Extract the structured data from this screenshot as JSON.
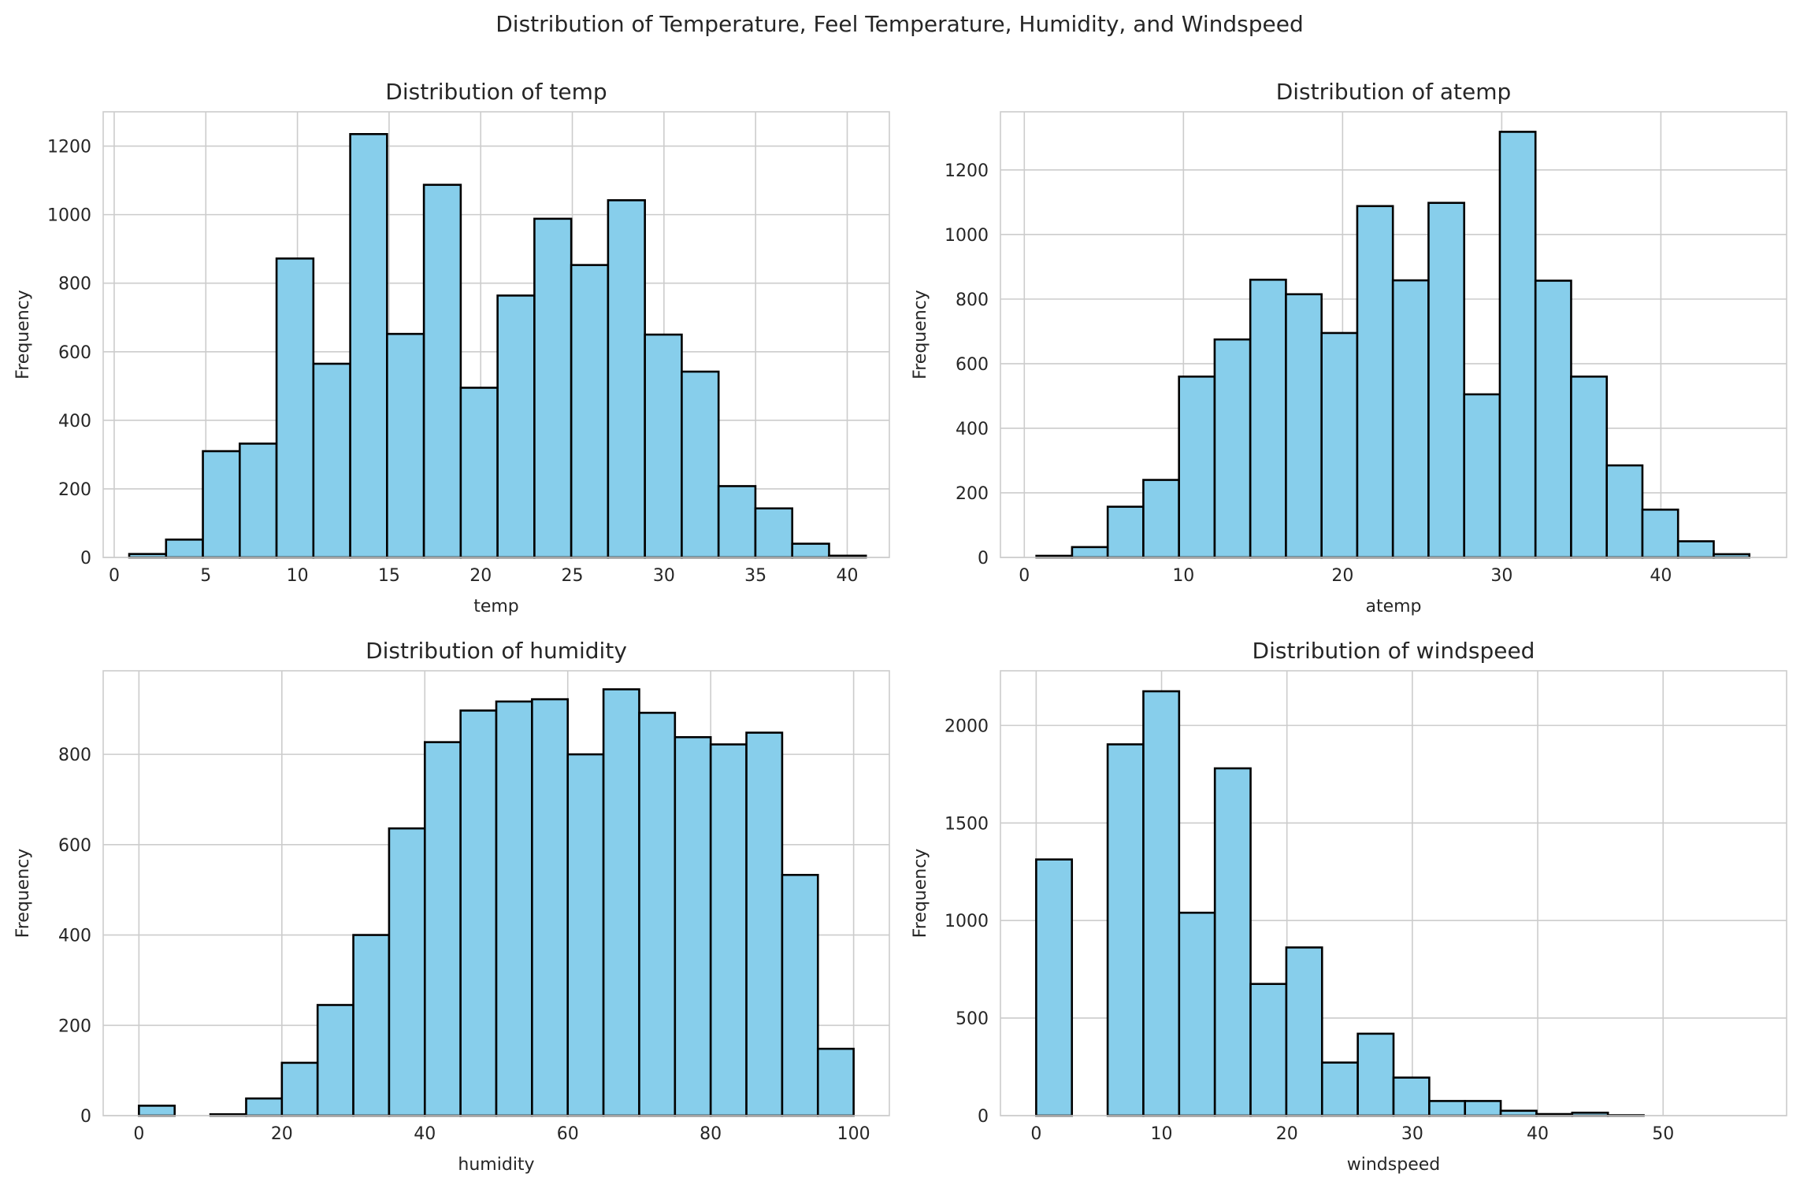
{
  "suptitle": "Distribution of Temperature, Feel Temperature, Humidity, and Windspeed",
  "colors": {
    "bar_fill": "#87ceeb",
    "bar_edge": "#000000",
    "grid": "#cccccc",
    "background": "#ffffff"
  },
  "chart_data": [
    {
      "type": "bar",
      "title": "Distribution of temp",
      "xlabel": "temp",
      "ylabel": "Frequency",
      "grid": true,
      "xlim": [
        -0.6,
        42.3
      ],
      "ylim": [
        0,
        1300
      ],
      "xticks": [
        0,
        5,
        10,
        15,
        20,
        25,
        30,
        35,
        40
      ],
      "yticks": [
        0,
        200,
        400,
        600,
        800,
        1000,
        1200
      ],
      "bin_edges": [
        0.82,
        2.83,
        4.84,
        6.85,
        8.86,
        10.87,
        12.88,
        14.89,
        16.9,
        18.91,
        20.92,
        22.93,
        24.94,
        26.95,
        28.96,
        30.97,
        32.98,
        34.99,
        37.0,
        39.01,
        41.02
      ],
      "values": [
        10,
        52,
        310,
        332,
        872,
        565,
        1235,
        652,
        1087,
        495,
        764,
        988,
        853,
        1042,
        650,
        542,
        208,
        143,
        40,
        5
      ]
    },
    {
      "type": "bar",
      "title": "Distribution of atemp",
      "xlabel": "atemp",
      "ylabel": "Frequency",
      "grid": true,
      "xlim": [
        -1.5,
        47.9
      ],
      "ylim": [
        0,
        1380
      ],
      "xticks": [
        0,
        10,
        20,
        30,
        40
      ],
      "yticks": [
        0,
        200,
        400,
        600,
        800,
        1000,
        1200
      ],
      "bin_edges": [
        0.76,
        3.0,
        5.24,
        7.48,
        9.72,
        11.96,
        14.2,
        16.44,
        18.68,
        20.92,
        23.16,
        25.4,
        27.64,
        29.88,
        32.12,
        34.36,
        36.6,
        38.84,
        41.08,
        43.32,
        45.56
      ],
      "values": [
        5,
        32,
        157,
        240,
        560,
        675,
        860,
        815,
        695,
        1088,
        858,
        1098,
        505,
        1318,
        857,
        560,
        285,
        148,
        50,
        10
      ]
    },
    {
      "type": "bar",
      "title": "Distribution of humidity",
      "xlabel": "humidity",
      "ylabel": "Frequency",
      "grid": true,
      "xlim": [
        -5,
        105
      ],
      "ylim": [
        0,
        985
      ],
      "xticks": [
        0,
        20,
        40,
        60,
        80,
        100
      ],
      "yticks": [
        0,
        200,
        400,
        600,
        800
      ],
      "bin_edges": [
        0,
        5,
        10,
        15,
        20,
        25,
        30,
        35,
        40,
        45,
        50,
        55,
        60,
        65,
        70,
        75,
        80,
        85,
        90,
        95,
        100
      ],
      "values": [
        22,
        0,
        3,
        38,
        117,
        245,
        400,
        636,
        827,
        897,
        917,
        922,
        800,
        944,
        892,
        838,
        822,
        848,
        533,
        148
      ]
    },
    {
      "type": "bar",
      "title": "Distribution of windspeed",
      "xlabel": "windspeed",
      "ylabel": "Frequency",
      "grid": true,
      "xlim": [
        -2.85,
        59.85
      ],
      "ylim": [
        0,
        2280
      ],
      "xticks": [
        0,
        10,
        20,
        30,
        40,
        50
      ],
      "yticks": [
        0,
        500,
        1000,
        1500,
        2000
      ],
      "bin_edges": [
        0,
        2.85,
        5.7,
        8.55,
        11.4,
        14.25,
        17.1,
        19.95,
        22.8,
        25.65,
        28.5,
        31.35,
        34.2,
        37.05,
        39.9,
        42.75,
        45.6,
        48.45,
        51.3,
        54.15,
        57.0
      ],
      "values": [
        1313,
        0,
        1903,
        2175,
        1040,
        1780,
        675,
        862,
        272,
        420,
        195,
        75,
        75,
        25,
        8,
        15,
        2,
        0,
        0,
        0
      ]
    }
  ]
}
